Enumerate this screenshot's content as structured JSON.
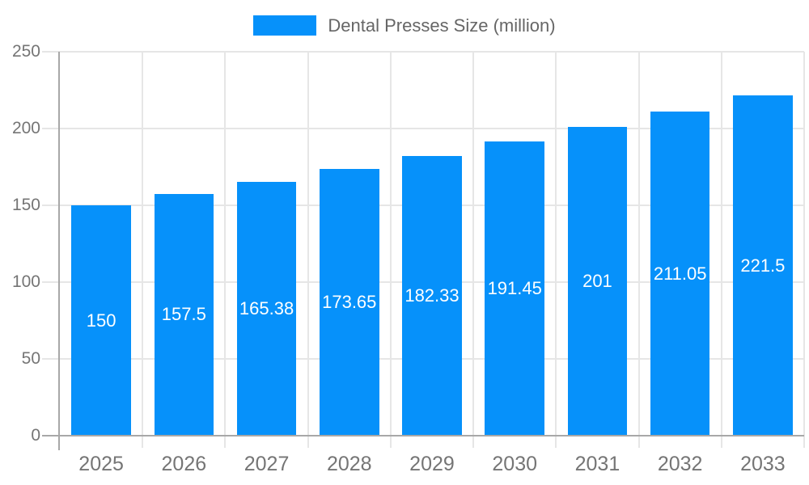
{
  "legend": {
    "label": "Dental Presses Size (million)"
  },
  "colors": {
    "bar": "#0691fa",
    "grid": "#e6e6e6",
    "axis": "#a8a8a8",
    "tick_label": "#757575",
    "legend_text": "#666666",
    "value_label": "#ffffff",
    "background": "#ffffff"
  },
  "chart_data": {
    "type": "bar",
    "title": "Dental Presses Size (million)",
    "categories": [
      "2025",
      "2026",
      "2027",
      "2028",
      "2029",
      "2030",
      "2031",
      "2032",
      "2033"
    ],
    "series": [
      {
        "name": "Dental Presses Size (million)",
        "values": [
          150,
          157.5,
          165.38,
          173.65,
          182.33,
          191.45,
          201,
          211.05,
          221.5
        ]
      }
    ],
    "xlabel": "",
    "ylabel": "",
    "ylim": [
      0,
      250
    ],
    "yticks": [
      0,
      50,
      100,
      150,
      200,
      250
    ],
    "grid": true,
    "legend_position": "top",
    "value_labels_shown": true
  }
}
